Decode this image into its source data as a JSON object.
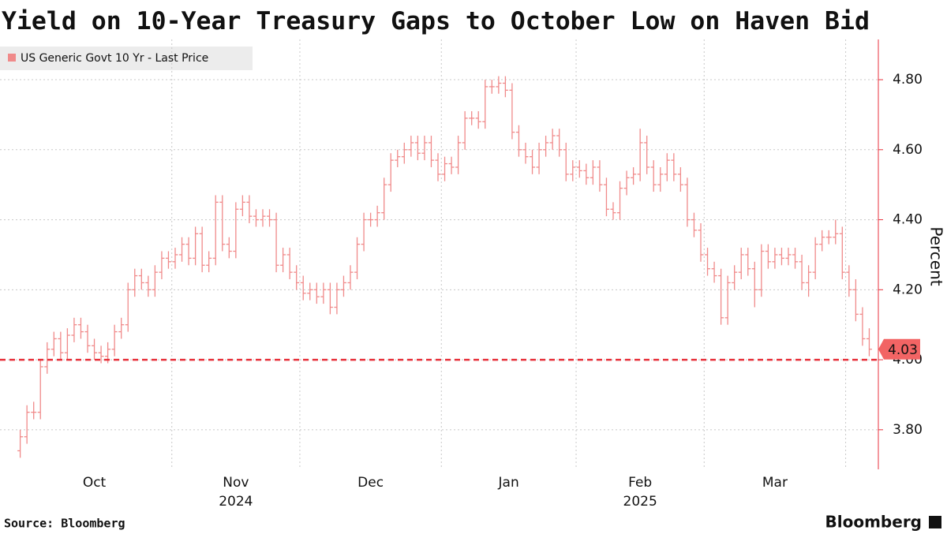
{
  "chart_data": {
    "type": "ohlc",
    "title": "Yield on 10-Year Treasury Gaps to October Low on Haven Bid",
    "y_axis_label": "Percent",
    "source": "Source: Bloomberg",
    "logo": "Bloomberg",
    "legend": "top-left",
    "grid": true,
    "reference_line": {
      "value": 4.0,
      "color": "#e8323c"
    },
    "series": [
      {
        "name": "US Generic Govt 10 Yr - Last Price",
        "color": "#f08a8a",
        "open": [
          3.74,
          3.78,
          3.85,
          3.85,
          3.98,
          4.03,
          4.06,
          4.02,
          4.07,
          4.1,
          4.08,
          4.04,
          4.02,
          4.01,
          4.03,
          4.08,
          4.1,
          4.2,
          4.24,
          4.22,
          4.2,
          4.25,
          4.29,
          4.28,
          4.3,
          4.33,
          4.29,
          4.36,
          4.27,
          4.29,
          4.45,
          4.33,
          4.31,
          4.43,
          4.45,
          4.41,
          4.4,
          4.41,
          4.4,
          4.27,
          4.3,
          4.25,
          4.22,
          4.19,
          4.2,
          4.18,
          4.2,
          4.15,
          4.2,
          4.22,
          4.25,
          4.33,
          4.4,
          4.4,
          4.42,
          4.5,
          4.57,
          4.58,
          4.6,
          4.62,
          4.59,
          4.62,
          4.57,
          4.53,
          4.56,
          4.55,
          4.62,
          4.69,
          4.69,
          4.68,
          4.78,
          4.78,
          4.79,
          4.77,
          4.65,
          4.6,
          4.58,
          4.55,
          4.6,
          4.62,
          4.64,
          4.6,
          4.53,
          4.55,
          4.54,
          4.52,
          4.55,
          4.5,
          4.43,
          4.42,
          4.49,
          4.52,
          4.53,
          4.62,
          4.55,
          4.5,
          4.53,
          4.57,
          4.53,
          4.5,
          4.4,
          4.37,
          4.3,
          4.26,
          4.24,
          4.12,
          4.22,
          4.25,
          4.3,
          4.26,
          4.2,
          4.31,
          4.28,
          4.3,
          4.29,
          4.3,
          4.28,
          4.22,
          4.25,
          4.33,
          4.35,
          4.35,
          4.36,
          4.25,
          4.2,
          4.13,
          4.06
        ],
        "high": [
          3.8,
          3.87,
          3.88,
          4.0,
          4.05,
          4.08,
          4.08,
          4.09,
          4.12,
          4.12,
          4.1,
          4.06,
          4.04,
          4.05,
          4.1,
          4.12,
          4.22,
          4.26,
          4.26,
          4.24,
          4.27,
          4.31,
          4.31,
          4.32,
          4.35,
          4.35,
          4.38,
          4.38,
          4.31,
          4.47,
          4.47,
          4.35,
          4.45,
          4.47,
          4.47,
          4.43,
          4.43,
          4.43,
          4.42,
          4.32,
          4.32,
          4.27,
          4.24,
          4.22,
          4.22,
          4.22,
          4.22,
          4.22,
          4.24,
          4.27,
          4.35,
          4.42,
          4.42,
          4.44,
          4.52,
          4.59,
          4.6,
          4.62,
          4.64,
          4.64,
          4.64,
          4.64,
          4.59,
          4.58,
          4.58,
          4.64,
          4.71,
          4.71,
          4.71,
          4.8,
          4.8,
          4.81,
          4.81,
          4.79,
          4.67,
          4.62,
          4.6,
          4.62,
          4.64,
          4.66,
          4.66,
          4.62,
          4.57,
          4.57,
          4.56,
          4.57,
          4.57,
          4.52,
          4.45,
          4.51,
          4.54,
          4.55,
          4.66,
          4.64,
          4.57,
          4.55,
          4.59,
          4.59,
          4.55,
          4.52,
          4.42,
          4.39,
          4.32,
          4.28,
          4.26,
          4.24,
          4.27,
          4.32,
          4.32,
          4.28,
          4.33,
          4.33,
          4.32,
          4.32,
          4.32,
          4.32,
          4.3,
          4.27,
          4.35,
          4.37,
          4.37,
          4.4,
          4.38,
          4.27,
          4.23,
          4.15,
          4.09
        ],
        "low": [
          3.72,
          3.76,
          3.83,
          3.83,
          3.96,
          4.01,
          4.0,
          4.0,
          4.05,
          4.06,
          4.02,
          4.0,
          3.99,
          3.99,
          4.01,
          4.06,
          4.08,
          4.18,
          4.2,
          4.18,
          4.18,
          4.23,
          4.26,
          4.26,
          4.28,
          4.27,
          4.27,
          4.25,
          4.25,
          4.27,
          4.31,
          4.29,
          4.29,
          4.41,
          4.39,
          4.38,
          4.38,
          4.38,
          4.25,
          4.25,
          4.23,
          4.2,
          4.17,
          4.17,
          4.16,
          4.16,
          4.13,
          4.13,
          4.18,
          4.2,
          4.23,
          4.31,
          4.38,
          4.38,
          4.4,
          4.48,
          4.55,
          4.56,
          4.58,
          4.57,
          4.57,
          4.55,
          4.51,
          4.51,
          4.53,
          4.53,
          4.6,
          4.67,
          4.66,
          4.66,
          4.76,
          4.76,
          4.75,
          4.63,
          4.58,
          4.56,
          4.53,
          4.53,
          4.58,
          4.6,
          4.58,
          4.51,
          4.51,
          4.52,
          4.5,
          4.5,
          4.48,
          4.41,
          4.4,
          4.4,
          4.47,
          4.5,
          4.51,
          4.53,
          4.48,
          4.48,
          4.51,
          4.51,
          4.48,
          4.38,
          4.35,
          4.28,
          4.24,
          4.22,
          4.1,
          4.1,
          4.2,
          4.23,
          4.24,
          4.15,
          4.18,
          4.26,
          4.26,
          4.27,
          4.27,
          4.26,
          4.2,
          4.18,
          4.23,
          4.31,
          4.33,
          4.33,
          4.23,
          4.18,
          4.11,
          4.04,
          4.01
        ],
        "close": [
          3.78,
          3.85,
          3.85,
          3.98,
          4.03,
          4.06,
          4.02,
          4.07,
          4.1,
          4.08,
          4.04,
          4.02,
          4.01,
          4.03,
          4.08,
          4.1,
          4.2,
          4.24,
          4.22,
          4.2,
          4.25,
          4.29,
          4.28,
          4.3,
          4.33,
          4.29,
          4.36,
          4.27,
          4.29,
          4.45,
          4.33,
          4.31,
          4.43,
          4.45,
          4.41,
          4.4,
          4.41,
          4.4,
          4.27,
          4.3,
          4.25,
          4.22,
          4.19,
          4.2,
          4.18,
          4.2,
          4.15,
          4.2,
          4.22,
          4.25,
          4.33,
          4.4,
          4.4,
          4.42,
          4.5,
          4.57,
          4.58,
          4.6,
          4.62,
          4.59,
          4.62,
          4.57,
          4.53,
          4.56,
          4.55,
          4.62,
          4.69,
          4.69,
          4.68,
          4.78,
          4.78,
          4.79,
          4.77,
          4.65,
          4.6,
          4.58,
          4.55,
          4.6,
          4.62,
          4.64,
          4.6,
          4.53,
          4.55,
          4.54,
          4.52,
          4.55,
          4.5,
          4.43,
          4.42,
          4.49,
          4.52,
          4.53,
          4.62,
          4.55,
          4.5,
          4.53,
          4.57,
          4.53,
          4.5,
          4.4,
          4.37,
          4.3,
          4.26,
          4.24,
          4.12,
          4.22,
          4.25,
          4.3,
          4.26,
          4.2,
          4.31,
          4.28,
          4.3,
          4.29,
          4.3,
          4.28,
          4.22,
          4.25,
          4.33,
          4.35,
          4.35,
          4.36,
          4.25,
          4.2,
          4.13,
          4.06,
          4.03
        ]
      }
    ],
    "xlim": [
      -3,
      127
    ],
    "xticks": [
      {
        "value": 11,
        "label": "Oct"
      },
      {
        "value": 32,
        "label": "Nov"
      },
      {
        "value": 52,
        "label": "Dec"
      },
      {
        "value": 72.5,
        "label": "Jan"
      },
      {
        "value": 92,
        "label": "Feb"
      },
      {
        "value": 112,
        "label": "Mar"
      }
    ],
    "xgrid": [
      22.5,
      41.5,
      62.5,
      82.5,
      101.5,
      122.5
    ],
    "year_labels": [
      {
        "value": 32,
        "label": "2024"
      },
      {
        "value": 92,
        "label": "2025"
      }
    ],
    "ylim": [
      3.687,
      4.915
    ],
    "yticks": [
      {
        "value": 3.8,
        "label": "3.80"
      },
      {
        "value": 4.0,
        "label": "4.00"
      },
      {
        "value": 4.2,
        "label": "4.20"
      },
      {
        "value": 4.4,
        "label": "4.40"
      },
      {
        "value": 4.6,
        "label": "4.60"
      },
      {
        "value": 4.8,
        "label": "4.80"
      }
    ]
  }
}
